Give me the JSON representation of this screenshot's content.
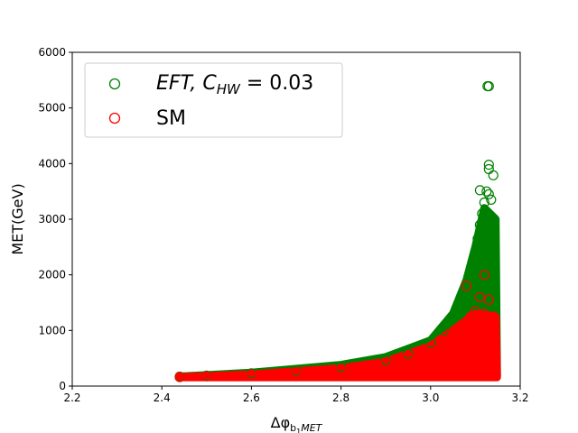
{
  "chart_data": {
    "type": "scatter",
    "title": "",
    "xlabel": "Δφ",
    "xlabel_sub": "b",
    "xlabel_sub2": "1",
    "xlabel_sub3": "MET",
    "ylabel": "MET(GeV)",
    "xlim": [
      2.2,
      3.2
    ],
    "ylim": [
      0,
      6000
    ],
    "xticks": [
      "2.2",
      "2.4",
      "2.6",
      "2.8",
      "3.0",
      "3.2"
    ],
    "yticks": [
      "0",
      "1000",
      "2000",
      "3000",
      "4000",
      "5000",
      "6000"
    ],
    "grid": false,
    "legend_position": "top-left",
    "marker": "hollow-circle",
    "series": [
      {
        "name": "EFT, C",
        "name_sub": "HW",
        "name_suffix": " = 0.03",
        "color": "#008000",
        "points": [
          [
            2.44,
            170
          ],
          [
            2.5,
            190
          ],
          [
            2.6,
            230
          ],
          [
            2.7,
            270
          ],
          [
            2.8,
            340
          ],
          [
            2.9,
            470
          ],
          [
            2.95,
            580
          ],
          [
            3.0,
            780
          ],
          [
            3.03,
            1000
          ],
          [
            3.05,
            1250
          ],
          [
            3.07,
            1600
          ],
          [
            3.08,
            1850
          ],
          [
            3.09,
            2100
          ],
          [
            3.1,
            2400
          ],
          [
            3.105,
            2650
          ],
          [
            3.11,
            2900
          ],
          [
            3.115,
            3100
          ],
          [
            3.12,
            3300
          ],
          [
            3.125,
            3500
          ],
          [
            3.13,
            3450
          ],
          [
            3.135,
            3350
          ],
          [
            3.14,
            3000
          ],
          [
            3.142,
            2600
          ],
          [
            3.11,
            3520
          ],
          [
            3.13,
            3900
          ],
          [
            3.13,
            3980
          ],
          [
            3.14,
            3790
          ],
          [
            3.127,
            5390
          ],
          [
            3.13,
            5390
          ],
          [
            3.12,
            2200
          ],
          [
            3.1,
            1800
          ],
          [
            3.135,
            2300
          ],
          [
            3.14,
            2000
          ],
          [
            3.13,
            2700
          ],
          [
            3.125,
            2500
          ]
        ],
        "band": [
          [
            2.44,
            170
          ],
          [
            2.6,
            240
          ],
          [
            2.8,
            380
          ],
          [
            2.9,
            520
          ],
          [
            3.0,
            820
          ],
          [
            3.05,
            1300
          ],
          [
            3.08,
            1900
          ],
          [
            3.1,
            2500
          ],
          [
            3.12,
            3200
          ],
          [
            3.145,
            3000
          ],
          [
            3.148,
            200
          ]
        ]
      },
      {
        "name": "SM",
        "color": "#ff0000",
        "points": [
          [
            2.44,
            160
          ],
          [
            2.5,
            175
          ],
          [
            2.6,
            210
          ],
          [
            2.7,
            250
          ],
          [
            2.8,
            310
          ],
          [
            2.9,
            420
          ],
          [
            2.95,
            520
          ],
          [
            3.0,
            700
          ],
          [
            3.03,
            820
          ],
          [
            3.05,
            950
          ],
          [
            3.07,
            1100
          ],
          [
            3.09,
            1250
          ],
          [
            3.1,
            1350
          ],
          [
            3.12,
            1300
          ],
          [
            3.14,
            1250
          ],
          [
            3.08,
            1800
          ],
          [
            3.11,
            1600
          ],
          [
            3.12,
            2000
          ],
          [
            3.13,
            1550
          ],
          [
            3.09,
            1250
          ]
        ],
        "band": [
          [
            2.44,
            160
          ],
          [
            2.6,
            210
          ],
          [
            2.8,
            320
          ],
          [
            2.9,
            440
          ],
          [
            3.0,
            720
          ],
          [
            3.05,
            1000
          ],
          [
            3.1,
            1300
          ],
          [
            3.145,
            1250
          ],
          [
            3.148,
            160
          ]
        ]
      }
    ]
  }
}
